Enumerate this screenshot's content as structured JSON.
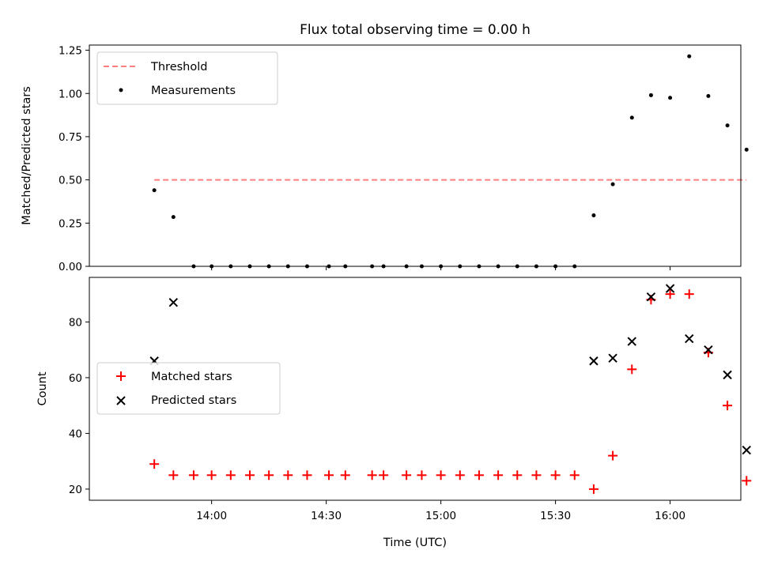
{
  "chart_data": [
    {
      "type": "scatter",
      "title": "Flux total observing time = 0.00 h",
      "xlabel": "",
      "ylabel": "Matched/Predicted stars",
      "ylim": [
        0,
        1.28
      ],
      "yticks": [
        "0.00",
        "0.25",
        "0.50",
        "0.75",
        "1.00",
        "1.25"
      ],
      "ytick_values": [
        0,
        0.25,
        0.5,
        0.75,
        1.0,
        1.25
      ],
      "legend_position": "upper-left",
      "threshold": {
        "name": "Threshold",
        "value": 0.5,
        "x_start_min": 825.0,
        "x_end_min": 980.0,
        "color": "#ff7f7f"
      },
      "series": [
        {
          "name": "Measurements",
          "color": "#000000",
          "x_min": [
            825.0,
            830.0,
            835.3,
            840.0,
            845.0,
            850.0,
            855.0,
            860.0,
            865.0,
            870.7,
            875.0,
            882.0,
            885.0,
            891.0,
            895.0,
            900.0,
            905.0,
            910.0,
            915.0,
            920.0,
            925.0,
            930.0,
            935.0,
            940.0,
            945.0,
            950.0,
            955.0,
            960.0,
            965.0,
            970.0,
            975.0,
            980.0
          ],
          "values": [
            0.44,
            0.285,
            0,
            0,
            0,
            0,
            0,
            0,
            0,
            0,
            0,
            0,
            0,
            0,
            0,
            0,
            0,
            0,
            0,
            0,
            0,
            0,
            0,
            0.295,
            0.475,
            0.86,
            0.99,
            0.975,
            1.215,
            0.985,
            0.815,
            0.675
          ]
        }
      ]
    },
    {
      "type": "scatter",
      "xlabel": "Time (UTC)",
      "ylabel": "Count",
      "ylim": [
        16,
        96
      ],
      "yticks": [
        "20",
        "40",
        "60",
        "80"
      ],
      "ytick_values": [
        20,
        40,
        60,
        80
      ],
      "xlim_min": [
        808.0,
        978.5
      ],
      "xticks": [
        "14:00",
        "14:30",
        "15:00",
        "15:30",
        "16:00"
      ],
      "xtick_values_min": [
        840,
        870,
        900,
        930,
        960
      ],
      "legend_position": "center-left",
      "series": [
        {
          "name": "Matched stars",
          "marker": "+",
          "color": "#ff0000",
          "x_min": [
            825.0,
            830.0,
            835.3,
            840.0,
            845.0,
            850.0,
            855.0,
            860.0,
            865.0,
            870.7,
            875.0,
            882.0,
            885.0,
            891.0,
            895.0,
            900.0,
            905.0,
            910.0,
            915.0,
            920.0,
            925.0,
            930.0,
            935.0,
            940.0,
            945.0,
            950.0,
            955.0,
            960.0,
            965.0,
            970.0,
            975.0,
            980.0
          ],
          "values": [
            29,
            25,
            25,
            25,
            25,
            25,
            25,
            25,
            25,
            25,
            25,
            25,
            25,
            25,
            25,
            25,
            25,
            25,
            25,
            25,
            25,
            25,
            25,
            20,
            32,
            63,
            88,
            90,
            90,
            69,
            50,
            23
          ]
        },
        {
          "name": "Predicted stars",
          "marker": "x",
          "color": "#000000",
          "x_min": [
            825.0,
            830.0,
            940.0,
            945.0,
            950.0,
            955.0,
            960.0,
            965.0,
            970.0,
            975.0,
            980.0
          ],
          "values": [
            66,
            87,
            66,
            67,
            73,
            89,
            92,
            74,
            70,
            61,
            34
          ]
        }
      ]
    }
  ]
}
